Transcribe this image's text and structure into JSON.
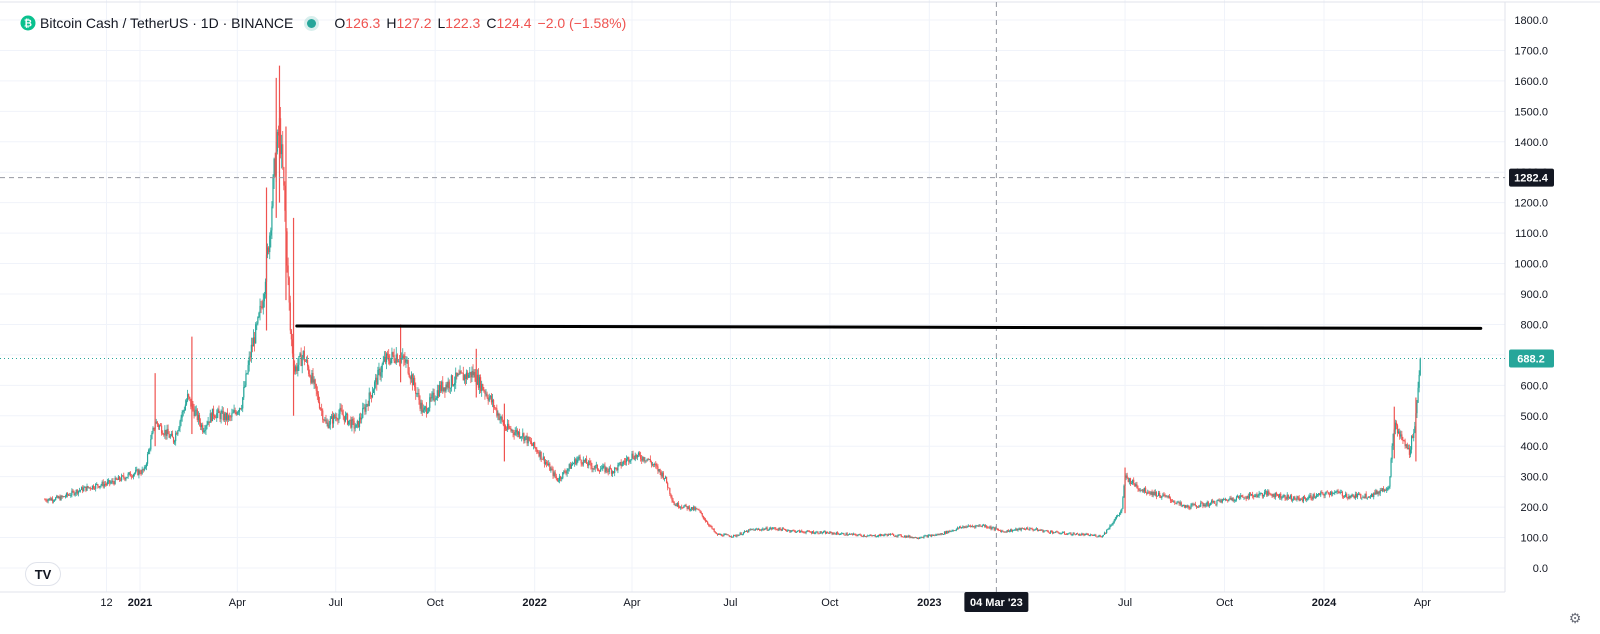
{
  "header": {
    "symbol": "Bitcoin Cash / TetherUS · 1D · BINANCE",
    "open_label": "O",
    "open": "126.3",
    "high_label": "H",
    "high": "127.2",
    "low_label": "L",
    "low": "122.3",
    "close_label": "C",
    "close": "124.4",
    "change": "−2.0 (−1.58%)"
  },
  "colors": {
    "up": "#26a69a",
    "down": "#ef5350",
    "accent": "#26a69a",
    "line": "#000000",
    "label_dark": "#131722"
  },
  "crosshair": {
    "date_label": "04 Mar '23",
    "price_label": "1282.4"
  },
  "last_price_label": "688.2",
  "icons": {
    "logo": "tradingview-logo-icon",
    "settings": "gear-icon",
    "symbol": "bch-coin-icon"
  },
  "chart_data": {
    "type": "candlestick",
    "title": "",
    "xlabel": "",
    "ylabel": "",
    "ylim": [
      -50,
      1850
    ],
    "y_ticks": [
      "0.0",
      "100.0",
      "200.0",
      "300.0",
      "400.0",
      "500.0",
      "600.0",
      "700.0",
      "800.0",
      "900.0",
      "1000.0",
      "1100.0",
      "1200.0",
      "1300.0",
      "1400.0",
      "1500.0",
      "1600.0",
      "1700.0",
      "1800.0"
    ],
    "y_tick_values": [
      0,
      100,
      200,
      300,
      400,
      500,
      600,
      700,
      800,
      900,
      1000,
      1100,
      1200,
      1300,
      1400,
      1500,
      1600,
      1700,
      1800
    ],
    "x_ticks": [
      {
        "label": "12",
        "date": "2020-12-01"
      },
      {
        "label": "2021",
        "date": "2021-01-01"
      },
      {
        "label": "Apr",
        "date": "2021-04-01"
      },
      {
        "label": "Jul",
        "date": "2021-07-01"
      },
      {
        "label": "Oct",
        "date": "2021-10-01"
      },
      {
        "label": "2022",
        "date": "2022-01-01"
      },
      {
        "label": "Apr",
        "date": "2022-04-01"
      },
      {
        "label": "Jul",
        "date": "2022-07-01"
      },
      {
        "label": "Oct",
        "date": "2022-10-01"
      },
      {
        "label": "2023",
        "date": "2023-01-01"
      },
      {
        "label": "Jul",
        "date": "2023-07-01"
      },
      {
        "label": "Oct",
        "date": "2023-10-01"
      },
      {
        "label": "2024",
        "date": "2024-01-01"
      },
      {
        "label": "Apr",
        "date": "2024-04-01"
      }
    ],
    "x_range": [
      "2020-10-05",
      "2024-07-10"
    ],
    "path_points": [
      [
        "2020-10-05",
        225
      ],
      [
        "2020-10-20",
        230
      ],
      [
        "2020-11-05",
        255
      ],
      [
        "2020-11-20",
        270
      ],
      [
        "2020-12-05",
        280
      ],
      [
        "2020-12-25",
        310
      ],
      [
        "2021-01-05",
        320
      ],
      [
        "2021-01-15",
        480
      ],
      [
        "2021-02-01",
        420
      ],
      [
        "2021-02-14",
        560
      ],
      [
        "2021-02-28",
        460
      ],
      [
        "2021-03-10",
        510
      ],
      [
        "2021-03-25",
        490
      ],
      [
        "2021-04-05",
        540
      ],
      [
        "2021-04-14",
        720
      ],
      [
        "2021-04-20",
        800
      ],
      [
        "2021-04-25",
        900
      ],
      [
        "2021-05-01",
        1100
      ],
      [
        "2021-05-05",
        1300
      ],
      [
        "2021-05-10",
        1450
      ],
      [
        "2021-05-13",
        1300
      ],
      [
        "2021-05-16",
        1100
      ],
      [
        "2021-05-20",
        780
      ],
      [
        "2021-05-24",
        650
      ],
      [
        "2021-06-01",
        700
      ],
      [
        "2021-06-10",
        610
      ],
      [
        "2021-06-22",
        470
      ],
      [
        "2021-07-05",
        510
      ],
      [
        "2021-07-20",
        460
      ],
      [
        "2021-08-01",
        560
      ],
      [
        "2021-08-15",
        680
      ],
      [
        "2021-08-26",
        700
      ],
      [
        "2021-09-05",
        670
      ],
      [
        "2021-09-20",
        510
      ],
      [
        "2021-10-05",
        590
      ],
      [
        "2021-10-20",
        620
      ],
      [
        "2021-11-05",
        640
      ],
      [
        "2021-11-20",
        560
      ],
      [
        "2021-12-05",
        460
      ],
      [
        "2021-12-20",
        440
      ],
      [
        "2022-01-05",
        380
      ],
      [
        "2022-01-22",
        290
      ],
      [
        "2022-02-10",
        360
      ],
      [
        "2022-02-25",
        330
      ],
      [
        "2022-03-15",
        320
      ],
      [
        "2022-04-01",
        370
      ],
      [
        "2022-04-15",
        360
      ],
      [
        "2022-05-01",
        300
      ],
      [
        "2022-05-10",
        210
      ],
      [
        "2022-06-01",
        190
      ],
      [
        "2022-06-18",
        110
      ],
      [
        "2022-07-05",
        105
      ],
      [
        "2022-07-20",
        125
      ],
      [
        "2022-08-10",
        130
      ],
      [
        "2022-09-01",
        120
      ],
      [
        "2022-10-01",
        115
      ],
      [
        "2022-11-08",
        105
      ],
      [
        "2022-11-25",
        110
      ],
      [
        "2022-12-20",
        100
      ],
      [
        "2023-01-10",
        110
      ],
      [
        "2023-02-01",
        135
      ],
      [
        "2023-02-20",
        140
      ],
      [
        "2023-03-10",
        120
      ],
      [
        "2023-04-01",
        130
      ],
      [
        "2023-05-01",
        115
      ],
      [
        "2023-06-10",
        105
      ],
      [
        "2023-06-28",
        190
      ],
      [
        "2023-07-01",
        300
      ],
      [
        "2023-07-15",
        260
      ],
      [
        "2023-08-10",
        230
      ],
      [
        "2023-08-25",
        200
      ],
      [
        "2023-09-15",
        210
      ],
      [
        "2023-10-10",
        230
      ],
      [
        "2023-11-10",
        245
      ],
      [
        "2023-12-10",
        225
      ],
      [
        "2024-01-10",
        250
      ],
      [
        "2024-01-25",
        235
      ],
      [
        "2024-02-15",
        240
      ],
      [
        "2024-03-01",
        270
      ],
      [
        "2024-03-06",
        470
      ],
      [
        "2024-03-12",
        430
      ],
      [
        "2024-03-20",
        380
      ],
      [
        "2024-03-26",
        500
      ],
      [
        "2024-03-30",
        688
      ]
    ],
    "spikes": [
      [
        "2021-05-10",
        1650,
        1200
      ],
      [
        "2021-05-07",
        1610,
        1150
      ],
      [
        "2021-04-28",
        1250,
        780
      ],
      [
        "2021-05-16",
        1450,
        880
      ],
      [
        "2021-05-23",
        1150,
        500
      ],
      [
        "2021-01-15",
        640,
        400
      ],
      [
        "2021-02-18",
        760,
        440
      ],
      [
        "2021-08-30",
        800,
        610
      ],
      [
        "2021-11-08",
        720,
        560
      ],
      [
        "2021-12-04",
        540,
        350
      ],
      [
        "2024-03-06",
        530,
        360
      ],
      [
        "2024-03-26",
        560,
        350
      ],
      [
        "2023-07-01",
        330,
        180
      ]
    ],
    "horizontal_line": {
      "value": 795,
      "from": "2021-05-26",
      "to": "2024-05-25"
    },
    "last_price": 688.2,
    "crosshair_date": "2023-03-04",
    "crosshair_price": 1282.4,
    "grid": true
  }
}
